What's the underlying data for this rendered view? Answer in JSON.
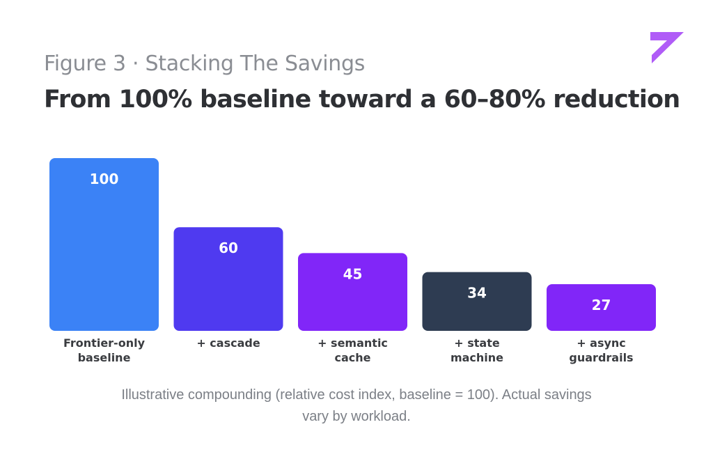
{
  "header": {
    "eyebrow": "Figure 3 · Stacking The Savings",
    "headline": "From 100% baseline toward a 60–80% reduction"
  },
  "logo": {
    "icon": "brand-logo-icon",
    "color": "#b05cf7"
  },
  "chart_data": {
    "type": "bar",
    "categories": [
      [
        "Frontier-only",
        "baseline"
      ],
      [
        "+ cascade"
      ],
      [
        "+ semantic",
        "cache"
      ],
      [
        "+ state",
        "machine"
      ],
      [
        "+ async",
        "guardrails"
      ]
    ],
    "values": [
      100,
      60,
      45,
      34,
      27
    ],
    "data_labels": [
      "100",
      "60",
      "45",
      "34",
      "27"
    ],
    "colors": [
      "#3b82f6",
      "#4f3af0",
      "#8126f8",
      "#2e3c52",
      "#8126f8"
    ],
    "label_color": "#ffffff",
    "category_color": "#3a3c40",
    "ylim": [
      0,
      100
    ],
    "grid": false,
    "legend": "none"
  },
  "caption": "Illustrative compounding (relative cost index, baseline = 100). Actual savings vary by workload."
}
